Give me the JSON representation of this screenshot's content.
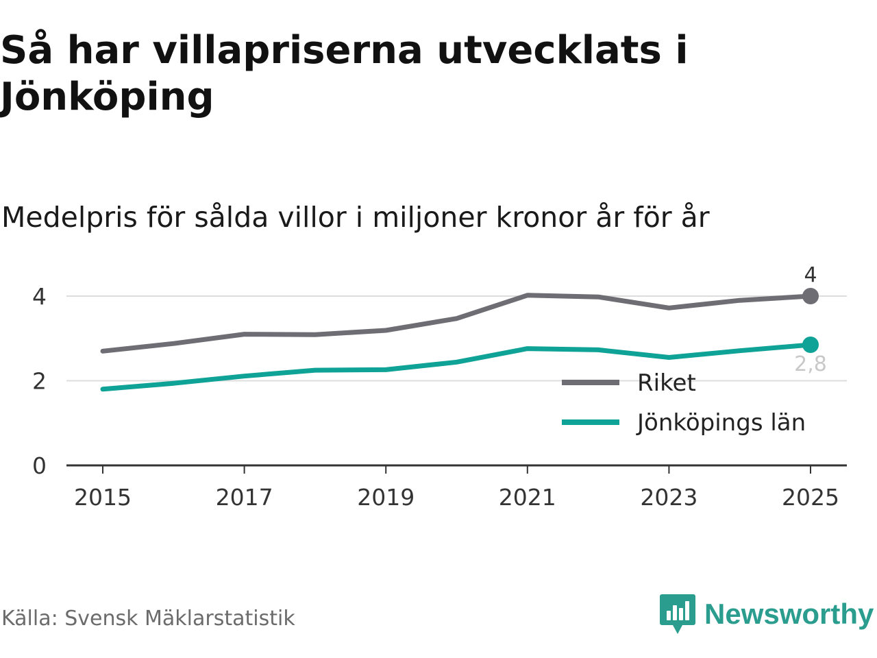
{
  "title": "Så har villapriserna utvecklats i Jönköping",
  "subtitle": "Medelpris för sålda villor i miljoner kronor år för år",
  "source": "Källa: Svensk Mäklarstatistik",
  "brand": "Newsworthy",
  "colors": {
    "riket": "#6e6d74",
    "lan": "#0fa296",
    "grid": "#dddddd",
    "axis": "#333333",
    "lan_label": "#c8c8c8",
    "riket_label": "#333333",
    "brand": "#2a9d8f"
  },
  "chart_data": {
    "type": "line",
    "title": "Medelpris för sålda villor i miljoner kronor år för år",
    "xlabel": "",
    "ylabel": "",
    "x": [
      2015,
      2016,
      2017,
      2018,
      2019,
      2020,
      2021,
      2022,
      2023,
      2024,
      2025
    ],
    "xticks": [
      "2015",
      "2017",
      "2019",
      "2021",
      "2023",
      "2025"
    ],
    "yticks": [
      "0",
      "2",
      "4"
    ],
    "ylim": [
      0,
      4.25
    ],
    "grid": true,
    "legend_position": "bottom-right",
    "series": [
      {
        "name": "Riket",
        "values": [
          2.7,
          2.88,
          3.1,
          3.09,
          3.19,
          3.47,
          4.02,
          3.98,
          3.72,
          3.9,
          4.0
        ],
        "end_label": "4"
      },
      {
        "name": "Jönköpings län",
        "values": [
          1.8,
          1.94,
          2.11,
          2.25,
          2.26,
          2.44,
          2.76,
          2.73,
          2.55,
          2.71,
          2.85
        ],
        "end_label": "2,8"
      }
    ]
  }
}
